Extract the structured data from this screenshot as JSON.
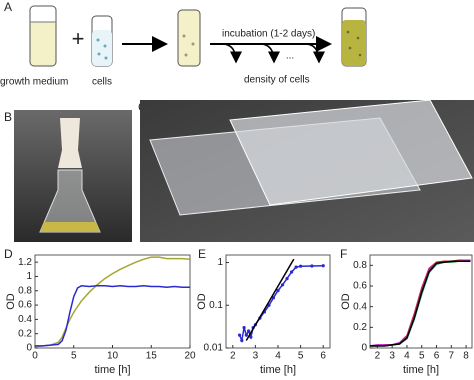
{
  "panel_labels": [
    "A",
    "B",
    "C",
    "D",
    "E",
    "F"
  ],
  "diagram": {
    "medium": "growth medium",
    "cells": "cells",
    "incubation": "incubation (1-2 days)",
    "dots": "...",
    "density": "density of cells"
  },
  "chart_data": [
    {
      "type": "line",
      "xlabel": "time [h]",
      "ylabel": "OD",
      "xlim": [
        0,
        20
      ],
      "xticks": [
        0,
        5,
        10,
        15,
        20
      ],
      "ylim": [
        0,
        1.3
      ],
      "yticks": [
        0,
        0.2,
        0.4,
        0.6,
        0.8,
        1,
        1.2
      ],
      "log_y": false,
      "series": [
        {
          "color": "#a6a632",
          "x": [
            0,
            1,
            2,
            3,
            3.5,
            4,
            4.5,
            5,
            5.5,
            6,
            7,
            8,
            9,
            10,
            11,
            12,
            13,
            14,
            15,
            16,
            17,
            18,
            19,
            20
          ],
          "values": [
            0.02,
            0.03,
            0.04,
            0.08,
            0.15,
            0.28,
            0.4,
            0.5,
            0.58,
            0.66,
            0.78,
            0.88,
            0.97,
            1.04,
            1.1,
            1.15,
            1.2,
            1.24,
            1.27,
            1.27,
            1.25,
            1.25,
            1.25,
            1.24
          ]
        },
        {
          "color": "#2a2ad0",
          "x": [
            0,
            1,
            2,
            3,
            3.5,
            4,
            4.5,
            5,
            5.5,
            6,
            7,
            8,
            9,
            10,
            11,
            12,
            13,
            14,
            15,
            16,
            17,
            18,
            19,
            20
          ],
          "values": [
            0.03,
            0.03,
            0.04,
            0.05,
            0.1,
            0.25,
            0.5,
            0.72,
            0.84,
            0.87,
            0.86,
            0.87,
            0.87,
            0.86,
            0.87,
            0.86,
            0.86,
            0.87,
            0.86,
            0.86,
            0.85,
            0.86,
            0.85,
            0.85
          ]
        }
      ]
    },
    {
      "type": "line",
      "xlabel": "time [h]",
      "ylabel": "OD",
      "xlim": [
        1.7,
        6.3
      ],
      "xticks": [
        2,
        3,
        4,
        5,
        6
      ],
      "ylim": [
        0.01,
        1.5
      ],
      "yticks": [
        0.01,
        0.1,
        1
      ],
      "log_y": true,
      "series": [
        {
          "color": "#2a2ad0",
          "markers": true,
          "x": [
            2.3,
            2.4,
            2.5,
            2.6,
            2.7,
            2.8,
            2.9,
            3,
            3.2,
            3.4,
            3.6,
            3.8,
            4,
            4.2,
            4.4,
            4.6,
            4.8,
            5,
            5.5,
            6
          ],
          "values": [
            0.02,
            0.015,
            0.03,
            0.02,
            0.025,
            0.018,
            0.03,
            0.035,
            0.05,
            0.07,
            0.1,
            0.15,
            0.22,
            0.3,
            0.42,
            0.6,
            0.78,
            0.82,
            0.83,
            0.84
          ]
        },
        {
          "color": "#000000",
          "x": [
            2.6,
            4.7
          ],
          "values": [
            0.015,
            1.2
          ]
        }
      ]
    },
    {
      "type": "line",
      "xlabel": "time [h]",
      "ylabel": "OD",
      "xlim": [
        1.5,
        8.4
      ],
      "xticks": [
        2,
        3,
        4,
        5,
        6,
        7,
        8
      ],
      "ylim": [
        0,
        0.9
      ],
      "yticks": [
        0,
        0.2,
        0.4,
        0.6,
        0.8
      ],
      "log_y": false,
      "series": [
        {
          "color": "#2a2ad0",
          "x": [
            1.5,
            2,
            2.5,
            3,
            3.5,
            4,
            4.5,
            5,
            5.5,
            6,
            6.5,
            7,
            7.5,
            8,
            8.3
          ],
          "values": [
            0.02,
            0.02,
            0.02,
            0.03,
            0.04,
            0.1,
            0.3,
            0.55,
            0.75,
            0.82,
            0.83,
            0.84,
            0.84,
            0.84,
            0.84
          ]
        },
        {
          "color": "#d02020",
          "x": [
            1.5,
            2,
            2.5,
            3,
            3.5,
            4,
            4.5,
            5,
            5.5,
            6,
            6.5,
            7,
            7.5,
            8,
            8.3
          ],
          "values": [
            0.02,
            0.02,
            0.03,
            0.03,
            0.05,
            0.12,
            0.33,
            0.58,
            0.77,
            0.83,
            0.84,
            0.84,
            0.85,
            0.85,
            0.85
          ]
        },
        {
          "color": "#20a040",
          "x": [
            1.5,
            2,
            2.5,
            3,
            3.5,
            4,
            4.5,
            5,
            5.5,
            6,
            6.5,
            7,
            7.5,
            8,
            8.3
          ],
          "values": [
            0.02,
            0.02,
            0.02,
            0.03,
            0.04,
            0.09,
            0.28,
            0.52,
            0.73,
            0.81,
            0.83,
            0.83,
            0.84,
            0.84,
            0.84
          ]
        },
        {
          "color": "#c020c0",
          "x": [
            1.5,
            2,
            2.5,
            3,
            3.5,
            4,
            4.5,
            5,
            5.5,
            6,
            6.5,
            7,
            7.5,
            8,
            8.3
          ],
          "values": [
            0.02,
            0.03,
            0.03,
            0.03,
            0.05,
            0.11,
            0.31,
            0.56,
            0.76,
            0.82,
            0.83,
            0.84,
            0.84,
            0.85,
            0.84
          ]
        },
        {
          "color": "#000000",
          "x": [
            1.5,
            2,
            2.5,
            3,
            3.5,
            4,
            4.5,
            5,
            5.5,
            6,
            6.5,
            7,
            7.5,
            8,
            8.3
          ],
          "values": [
            0.02,
            0.02,
            0.02,
            0.03,
            0.04,
            0.1,
            0.29,
            0.54,
            0.74,
            0.82,
            0.83,
            0.84,
            0.84,
            0.84,
            0.84
          ]
        }
      ]
    }
  ]
}
